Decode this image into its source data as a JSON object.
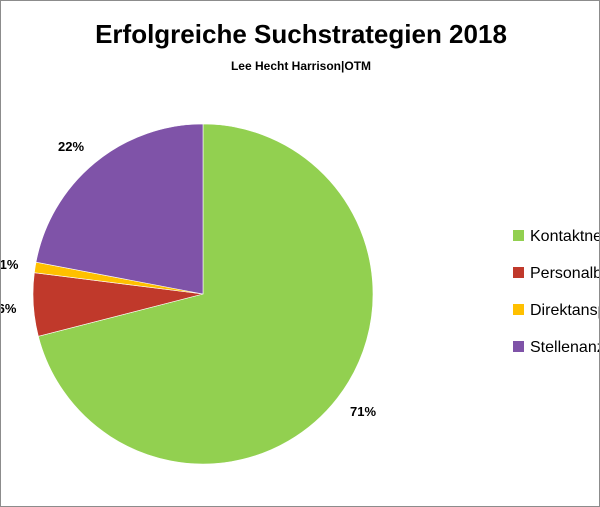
{
  "chart_data": {
    "type": "pie",
    "title": "Erfolgreiche Suchstrategien 2018",
    "subtitle": "Lee Hecht Harrison|OTM",
    "slices": [
      {
        "name": "Kontaktnetzwerk",
        "value": 71,
        "label": "71%",
        "color": "#92d050"
      },
      {
        "name": "Personalberater",
        "value": 6,
        "label": "6%",
        "color": "#c0392b"
      },
      {
        "name": "Direktansprache",
        "value": 1,
        "label": "1%",
        "color": "#ffc000"
      },
      {
        "name": "Stellenanzeigen",
        "value": 22,
        "label": "22%",
        "color": "#7f53a8"
      }
    ],
    "legend_position": "right"
  }
}
